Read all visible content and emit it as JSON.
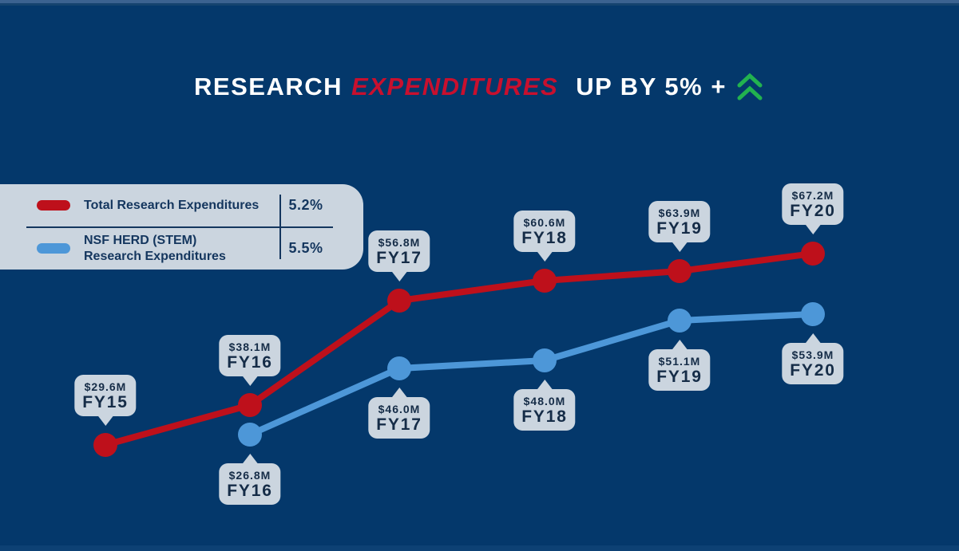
{
  "page": {
    "background_color": "#04386B",
    "accent_red": "#C8102E",
    "bubble_bg": "#CBD5DF",
    "text_navy": "#14365E",
    "chevron_green": "#22B24F"
  },
  "header": {
    "title_part1": "RESEARCH",
    "title_part2": "EXPENDITURES",
    "title_part3": "UP BY 5% +",
    "trend_icon": "double-chevron-up-icon"
  },
  "legend": {
    "rows": [
      {
        "swatch_color": "#BE101B",
        "label_line1": "Total Research Expenditures",
        "label_line2": "",
        "growth": "5.2%"
      },
      {
        "swatch_color": "#4D97D8",
        "label_line1": "NSF HERD (STEM)",
        "label_line2": "Research Expenditures",
        "growth": "5.5%"
      }
    ]
  },
  "chart_data": {
    "type": "line",
    "title": "RESEARCH EXPENDITURES UP BY 5% +",
    "categories": [
      "FY15",
      "FY16",
      "FY17",
      "FY18",
      "FY19",
      "FY20"
    ],
    "series": [
      {
        "name": "Total Research Expenditures",
        "color": "#BE101B",
        "growth_pct": "5.2%",
        "values": [
          29.6,
          38.1,
          56.8,
          60.6,
          63.9,
          67.2
        ],
        "display_values": [
          "$29.6M",
          "$38.1M",
          "$56.8M",
          "$60.6M",
          "$63.9M",
          "$67.2M"
        ],
        "label_position": "above"
      },
      {
        "name": "NSF HERD (STEM) Research Expenditures",
        "color": "#4D97D8",
        "growth_pct": "5.5%",
        "values": [
          null,
          26.8,
          46.0,
          48.0,
          51.1,
          53.9
        ],
        "display_values": [
          null,
          "$26.8M",
          "$46.0M",
          "$48.0M",
          "$51.1M",
          "$53.9M"
        ],
        "label_position": "below"
      }
    ],
    "unit": "USD millions",
    "grid": false,
    "axes_visible": false,
    "legend_position": "top-left"
  }
}
